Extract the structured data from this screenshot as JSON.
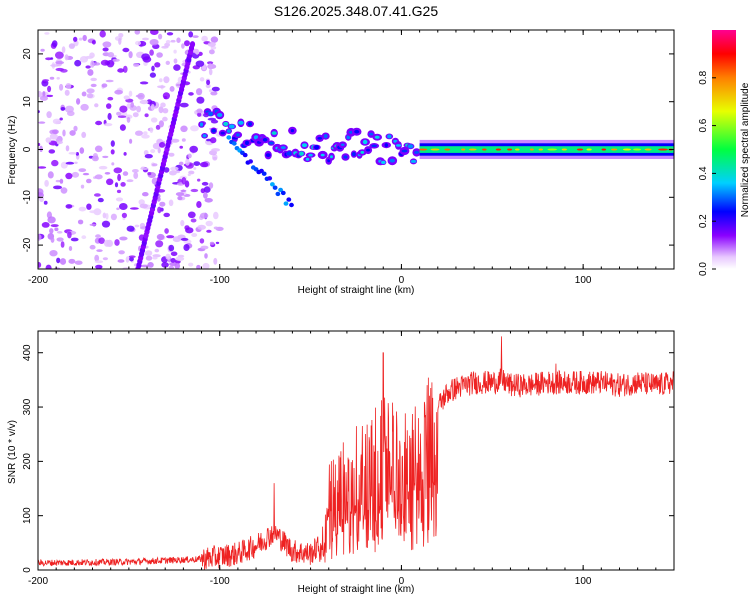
{
  "figure": {
    "title": "S126.2025.348.07.41.G25"
  },
  "chart_data": [
    {
      "type": "heatmap",
      "title": "S126.2025.348.07.41.G25",
      "xlabel": "Height of straight line (km)",
      "ylabel": "Frequency (Hz)",
      "xlim": [
        -200,
        150
      ],
      "ylim": [
        -25,
        25
      ],
      "xticks": [
        -200,
        -100,
        0,
        100
      ],
      "yticks": [
        -20,
        -10,
        0,
        10,
        20
      ],
      "colorbar": {
        "label": "Normalized spectral amplitude",
        "range": [
          0.0,
          1.0
        ],
        "ticks": [
          0.0,
          0.2,
          0.4,
          0.6,
          0.8
        ],
        "tick_labels": [
          "0.0",
          "0.2",
          "0.4",
          "0.6",
          "0.8"
        ],
        "colormap": [
          "#ffffff",
          "#e8c8ff",
          "#8a00ff",
          "#0000ff",
          "#00d0ff",
          "#00ff40",
          "#e8ff00",
          "#ff8000",
          "#ff0000",
          "#ff0090"
        ]
      },
      "features": [
        {
          "name": "noise scatter",
          "x_range": [
            -200,
            -100
          ],
          "y_range": [
            -25,
            25
          ],
          "amplitude": 0.1
        },
        {
          "name": "diagonal streak",
          "x_start": -145,
          "y_start": -25,
          "x_end": -115,
          "y_end": 22,
          "amplitude": 0.15
        },
        {
          "name": "doppler track",
          "points": [
            [
              -110,
              6
            ],
            [
              -100,
              5
            ],
            [
              -90,
              4
            ],
            [
              -75,
              1
            ],
            [
              -60,
              2
            ],
            [
              -50,
              -1
            ],
            [
              -40,
              0
            ],
            [
              -20,
              1
            ],
            [
              -10,
              0
            ],
            [
              0,
              1
            ],
            [
              10,
              0
            ],
            [
              50,
              0
            ],
            [
              100,
              0
            ],
            [
              150,
              0
            ]
          ],
          "amplitude_left": 0.25,
          "amplitude_right": 0.85
        }
      ]
    },
    {
      "type": "line",
      "title": "",
      "xlabel": "Height of straight line (km)",
      "ylabel": "SNR (10 * v/v)",
      "xlim": [
        -200,
        150
      ],
      "ylim": [
        0,
        440
      ],
      "xticks": [
        -200,
        -100,
        0,
        100
      ],
      "yticks": [
        0,
        100,
        200,
        300,
        400
      ],
      "color": "#ee2222",
      "series": [
        {
          "name": "SNR envelope",
          "x": [
            -200,
            -150,
            -110,
            -100,
            -90,
            -80,
            -70,
            -60,
            -50,
            -45,
            -40,
            -35,
            -30,
            -25,
            -20,
            -15,
            -10,
            -5,
            0,
            5,
            10,
            15,
            20,
            25,
            30,
            40,
            50,
            55,
            60,
            70,
            80,
            90,
            100,
            110,
            120,
            130,
            140,
            150
          ],
          "values": [
            13,
            15,
            20,
            25,
            30,
            45,
            70,
            35,
            30,
            45,
            110,
            150,
            170,
            190,
            200,
            215,
            240,
            230,
            195,
            215,
            250,
            275,
            300,
            325,
            335,
            345,
            345,
            350,
            340,
            340,
            345,
            345,
            345,
            345,
            340,
            345,
            340,
            345
          ]
        }
      ],
      "spikes": [
        [
          -70,
          160
        ],
        [
          -10,
          400
        ],
        [
          55,
          430
        ],
        [
          85,
          380
        ]
      ]
    }
  ]
}
